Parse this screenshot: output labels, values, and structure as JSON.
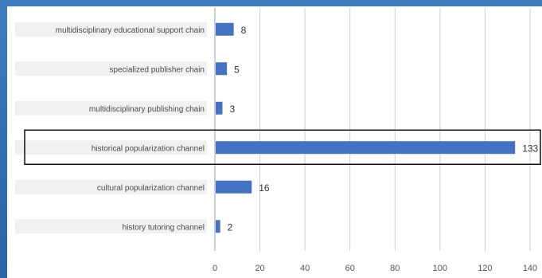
{
  "chart_data": {
    "type": "bar",
    "orientation": "horizontal",
    "categories": [
      "multidisciplinary educational support chain",
      "specialized publisher chain",
      "multidisciplinary publishing chain",
      "historical popularization channel",
      "cultural popularization channel",
      "history tutoring channel"
    ],
    "values": [
      8,
      5,
      3,
      133,
      16,
      2
    ],
    "xlim": [
      0,
      140
    ],
    "xticks": [
      "0",
      "20",
      "40",
      "60",
      "80",
      "100",
      "120",
      "140"
    ],
    "title": "",
    "xlabel": "",
    "ylabel": "",
    "grid": "vertical",
    "highlighted_category": "historical popularization channel",
    "bar_color": "#4472c4",
    "highlight_color": "#111111"
  }
}
